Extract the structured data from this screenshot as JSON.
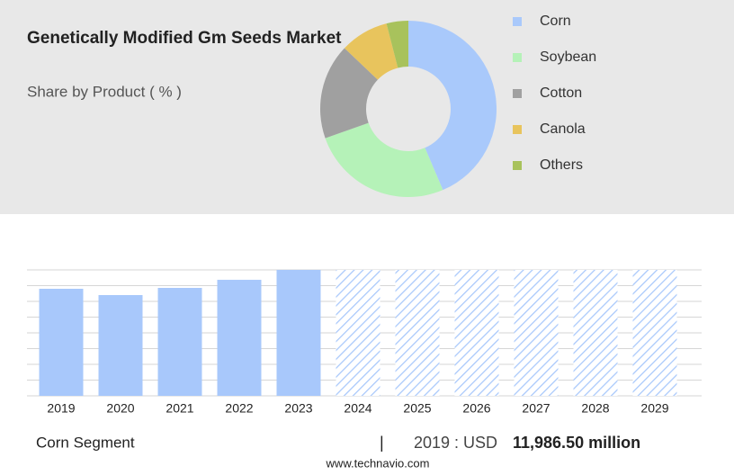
{
  "chart_data": [
    {
      "type": "donut",
      "title": "Genetically Modified Gm Seeds Market",
      "subtitle": "Share by Product ( % )",
      "categories": [
        "Corn",
        "Soybean",
        "Cotton",
        "Canola",
        "Others"
      ],
      "values": [
        43.6,
        26,
        17.5,
        8.9,
        4
      ],
      "colors": [
        "#a9c9fb",
        "#b5f2b8",
        "#a0a0a0",
        "#e8c45d",
        "#a8c25c"
      ]
    },
    {
      "type": "bar",
      "categories": [
        "2019",
        "2020",
        "2021",
        "2022",
        "2023",
        "2024",
        "2025",
        "2026",
        "2027",
        "2028",
        "2029"
      ],
      "values": [
        11986.5,
        11280,
        12085,
        12990,
        14100,
        null,
        null,
        null,
        null,
        null,
        null
      ],
      "color": "#a8c8fb",
      "ylim": [
        0,
        14100
      ],
      "grid": true
    }
  ],
  "footer": {
    "segment": "Corn Segment",
    "separator": "|",
    "year_label": "2019 : USD",
    "amount": "11,986.50 million",
    "source": "www.technavio.com"
  }
}
